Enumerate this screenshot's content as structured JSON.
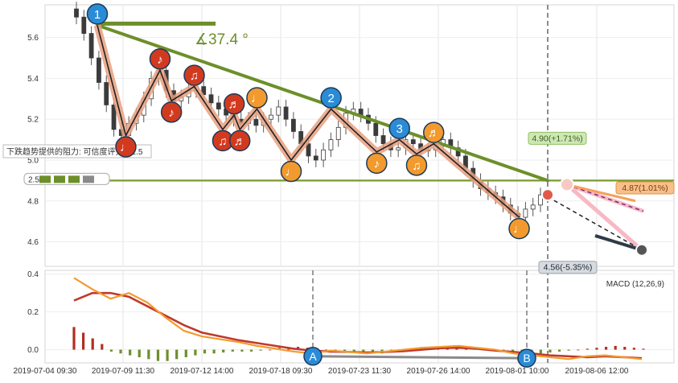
{
  "chart_data": [
    {
      "type": "candlestick",
      "title": "",
      "ylim": [
        4.48,
        5.76
      ],
      "yticks": [
        "5.6",
        "5.4",
        "5.2",
        "5.0",
        "4.8",
        "4.6"
      ],
      "ytick_values": [
        5.6,
        5.4,
        5.2,
        5.0,
        4.8,
        4.6
      ],
      "close_path": [
        5.7,
        5.62,
        5.5,
        5.38,
        5.27,
        5.15,
        5.12,
        5.18,
        5.22,
        5.3,
        5.4,
        5.44,
        5.34,
        5.29,
        5.31,
        5.34,
        5.36,
        5.32,
        5.28,
        5.25,
        5.22,
        5.2,
        5.18,
        5.2,
        5.17,
        5.2,
        5.22,
        5.26,
        5.2,
        5.14,
        5.08,
        5.02,
        5.0,
        5.05,
        5.1,
        5.16,
        5.23,
        5.25,
        5.22,
        5.18,
        5.12,
        5.08,
        5.05,
        5.06,
        5.1,
        5.08,
        5.05,
        5.05,
        5.08,
        5.1,
        5.06,
        5.02,
        4.96,
        4.9,
        4.86,
        4.84,
        4.82,
        4.78,
        4.74,
        4.72,
        4.76,
        4.78,
        4.83
      ],
      "zigzag": [
        {
          "label": "1",
          "kind": "pivot",
          "x": 0,
          "y": 5.66
        },
        {
          "label": "♩",
          "kind": "low",
          "x": 5,
          "y": 5.12
        },
        {
          "label": "♪",
          "kind": "high",
          "x": 11,
          "y": 5.44
        },
        {
          "label": "♪",
          "kind": "low",
          "x": 13,
          "y": 5.29
        },
        {
          "label": "♫",
          "kind": "high",
          "x": 17,
          "y": 5.36
        },
        {
          "label": "♫",
          "kind": "low",
          "x": 22,
          "y": 5.15
        },
        {
          "label": "♬",
          "kind": "high",
          "x": 24,
          "y": 5.22
        },
        {
          "label": "♬",
          "kind": "low",
          "x": 25,
          "y": 5.15
        },
        {
          "label": "♩",
          "kind": "high",
          "x": 28,
          "y": 5.25
        },
        {
          "label": "♩",
          "kind": "low",
          "x": 34,
          "y": 5.0
        },
        {
          "label": "2",
          "kind": "pivot",
          "x": 41,
          "y": 5.25
        },
        {
          "label": "♪",
          "kind": "low",
          "x": 49,
          "y": 5.04
        },
        {
          "label": "3",
          "kind": "pivot",
          "x": 53,
          "y": 5.1
        },
        {
          "label": "♫",
          "kind": "low",
          "x": 56,
          "y": 5.03
        },
        {
          "label": "♬",
          "kind": "high",
          "x": 59,
          "y": 5.08
        },
        {
          "label": "♩",
          "kind": "low",
          "x": 74,
          "y": 4.72
        }
      ],
      "trendline": {
        "from": [
          0,
          5.66
        ],
        "to": [
          79,
          4.9
        ],
        "angle_label": "∡37.4 °"
      },
      "support_level": 4.9,
      "support_label": "2.5",
      "resistance_note": "下跌趋势提供的阻力: 可信度评分：2.5",
      "projections": [
        {
          "label": "4.90(+1.71%)",
          "y": 4.9,
          "color": "#7cab3f"
        },
        {
          "label": "4.87(1.01%)",
          "y": 4.87,
          "color": "#f5a05a"
        },
        {
          "label": "4.56(-5.35%)",
          "y": 4.56,
          "color": "#2e3b47"
        }
      ],
      "marker_b_x": 74
    },
    {
      "type": "macd",
      "title": "MACD (12,26,9)",
      "ylim": [
        -0.07,
        0.42
      ],
      "yticks": [
        "0.4",
        "0.2",
        "0.0"
      ],
      "ytick_values": [
        0.4,
        0.2,
        0.0
      ],
      "markers": [
        {
          "label": "A",
          "date_index": 3
        },
        {
          "label": "B",
          "date_index": 6
        }
      ],
      "macd_line": [
        0.38,
        0.32,
        0.27,
        0.3,
        0.25,
        0.17,
        0.1,
        0.07,
        0.055,
        0.04,
        0.02,
        0.005,
        -0.01,
        -0.02,
        -0.005,
        -0.012,
        -0.02,
        -0.01,
        0.0,
        0.01,
        0.015,
        0.02,
        0.01,
        0.0,
        -0.02,
        -0.03,
        -0.04,
        -0.05,
        -0.035,
        -0.03,
        -0.04,
        -0.05
      ],
      "signal_line": [
        0.26,
        0.3,
        0.3,
        0.28,
        0.23,
        0.18,
        0.13,
        0.09,
        0.07,
        0.05,
        0.035,
        0.02,
        0.005,
        -0.005,
        -0.01,
        -0.012,
        -0.015,
        -0.012,
        -0.008,
        0.0,
        0.008,
        0.01,
        0.005,
        -0.005,
        -0.012,
        -0.02,
        -0.03,
        -0.035,
        -0.04,
        -0.035,
        -0.04,
        -0.045
      ],
      "histogram": [
        0.12,
        0.09,
        0.06,
        0.03,
        -0.01,
        -0.02,
        -0.03,
        -0.04,
        -0.05,
        -0.06,
        -0.06,
        -0.05,
        -0.04,
        -0.03,
        -0.02,
        -0.02,
        -0.015,
        -0.01,
        -0.01,
        -0.01,
        -0.005,
        0.0,
        0.01,
        0.01,
        0.015,
        0.01,
        0.005,
        0.0,
        -0.005,
        -0.01,
        -0.01,
        -0.015,
        -0.02,
        -0.02,
        -0.015,
        -0.01,
        -0.005,
        0.0,
        0.005,
        0.01,
        0.015,
        0.02,
        0.015,
        0.01,
        0.005,
        0.0,
        -0.005,
        -0.01,
        -0.015,
        -0.02,
        -0.02,
        -0.015,
        -0.01,
        -0.005,
        0.0,
        0.005,
        0.01,
        0.015,
        0.02,
        0.015,
        0.01,
        0.005
      ]
    }
  ],
  "x_ticks": [
    "2019-07-04 09:30",
    "2019-07-09 11:30",
    "2019-07-12 14:00",
    "2019-07-18 09:30",
    "2019-07-23 11:30",
    "2019-07-26 14:00",
    "2019-08-01 10:00",
    "2019-08-06 12:00"
  ]
}
